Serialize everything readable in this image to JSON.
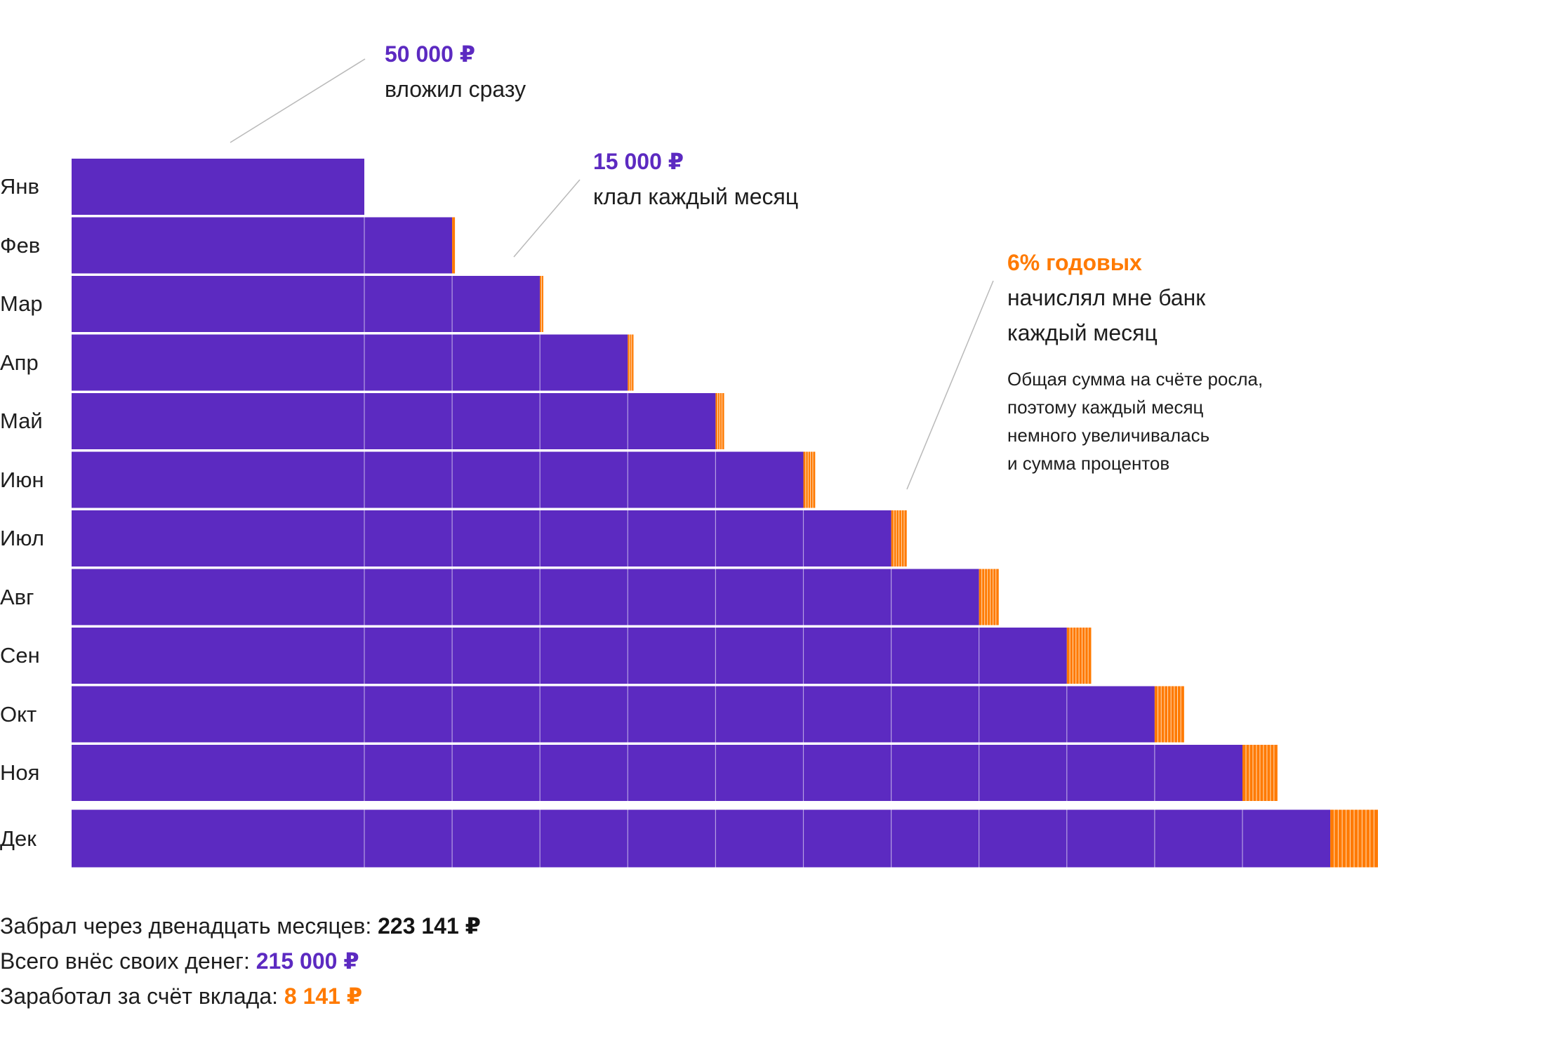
{
  "colors": {
    "principal": "#5C2AC1",
    "interest": "#FF7A00",
    "divider": "#FFFFFF",
    "leader": "#B9B9B9"
  },
  "chart_data": {
    "type": "bar",
    "orientation": "horizontal",
    "stacked": true,
    "categories": [
      "Янв",
      "Фев",
      "Мар",
      "Апр",
      "Май",
      "Июн",
      "Июл",
      "Авг",
      "Сен",
      "Окт",
      "Ноя",
      "Дек"
    ],
    "series": [
      {
        "values": [
          50000,
          65000,
          80000,
          95000,
          110000,
          125000,
          140000,
          155000,
          170000,
          185000,
          200000,
          215000
        ]
      },
      {
        "values": [
          0,
          250,
          576,
          979,
          1459,
          2017,
          2652,
          3366,
          4158,
          5029,
          5979,
          8141
        ]
      }
    ],
    "deposit_segments_per_row": [
      1,
      2,
      3,
      4,
      5,
      6,
      7,
      8,
      9,
      10,
      11,
      12
    ],
    "interest_stripes_per_row": [
      0,
      1,
      2,
      3,
      4,
      5,
      6,
      7,
      8,
      9,
      10,
      12
    ],
    "xlim": [
      0,
      230000
    ]
  },
  "annotations": {
    "initial": {
      "amount": "50 000 ₽",
      "text": "вложил сразу"
    },
    "monthly": {
      "amount": "15 000 ₽",
      "text": "клал каждый месяц"
    },
    "rate": {
      "amount": "6% годовых",
      "line1": "начислял мне банк",
      "line2": "каждый месяц",
      "note1": "Общая сумма на счёте росла,",
      "note2": "поэтому каждый месяц",
      "note3": "немного увеличивалась",
      "note4": "и сумма процентов"
    }
  },
  "summary": {
    "line1_label": "Забрал через двенадцать месяцев:",
    "line1_value": "223 141 ₽",
    "line2_label": "Всего внёс своих денег:",
    "line2_value": "215 000 ₽",
    "line3_label": "Заработал за счёт вклада:",
    "line3_value": "8 141 ₽"
  }
}
